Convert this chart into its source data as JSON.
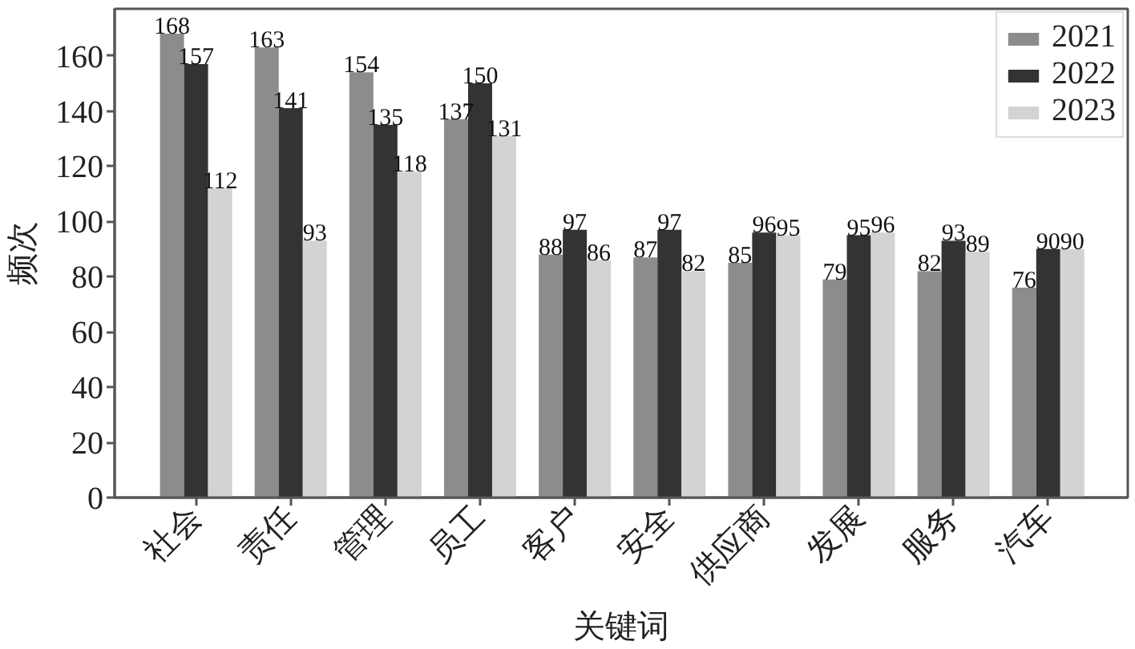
{
  "chart_data": {
    "type": "bar",
    "xlabel": "关键词",
    "ylabel": "频次",
    "categories": [
      "社会",
      "责任",
      "管理",
      "员工",
      "客户",
      "安全",
      "供应商",
      "发展",
      "服务",
      "汽车"
    ],
    "series": [
      {
        "name": "2021",
        "color": "#8c8c8e",
        "values": [
          168,
          163,
          154,
          137,
          88,
          87,
          85,
          79,
          82,
          76
        ]
      },
      {
        "name": "2022",
        "color": "#333335",
        "values": [
          157,
          141,
          135,
          150,
          97,
          97,
          96,
          95,
          93,
          90
        ]
      },
      {
        "name": "2023",
        "color": "#d3d3d5",
        "values": [
          112,
          93,
          118,
          131,
          86,
          82,
          95,
          96,
          89,
          90
        ]
      }
    ],
    "ylim": [
      0,
      177
    ],
    "yticks": [
      0,
      20,
      40,
      60,
      80,
      100,
      120,
      140,
      160
    ],
    "data_labels": true,
    "grid": false,
    "legend": "top right"
  }
}
